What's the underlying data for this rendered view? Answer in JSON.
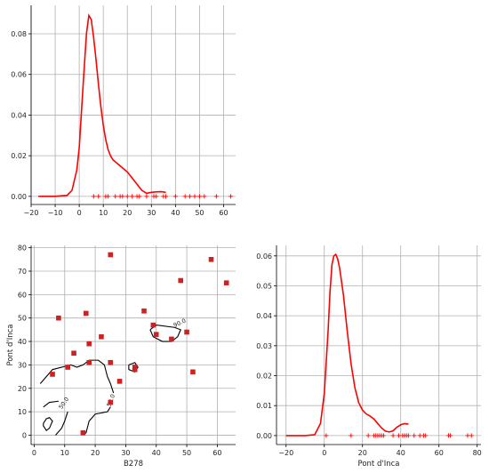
{
  "chart_data": [
    {
      "type": "line",
      "panel": "top-left",
      "description_series": "kde",
      "xlim": [
        -20,
        65
      ],
      "ylim": [
        -0.004,
        0.094
      ],
      "xticks": [
        -20,
        -10,
        0,
        10,
        20,
        30,
        40,
        50,
        60
      ],
      "yticks": [
        0.0,
        0.02,
        0.04,
        0.06,
        0.08
      ],
      "ytick_labels": [
        "0.00",
        "0.02",
        "0.04",
        "0.06",
        "0.08"
      ],
      "xlabel": "",
      "ylabel": "",
      "grid": true,
      "color": "#ff0000",
      "kde_x": [
        -17,
        -10,
        -5,
        -3,
        -1,
        0,
        1,
        2,
        3,
        4,
        5,
        6,
        7,
        8,
        9,
        10,
        11,
        12,
        13,
        14,
        16,
        18,
        20,
        22,
        24,
        26,
        28,
        30,
        32,
        34,
        36
      ],
      "kde_y": [
        0.0,
        0.0,
        0.0005,
        0.003,
        0.013,
        0.024,
        0.043,
        0.062,
        0.08,
        0.089,
        0.087,
        0.078,
        0.067,
        0.055,
        0.044,
        0.035,
        0.028,
        0.023,
        0.02,
        0.018,
        0.016,
        0.014,
        0.012,
        0.009,
        0.006,
        0.003,
        0.0015,
        0.002,
        0.0022,
        0.0023,
        0.002
      ],
      "rug_x": [
        6,
        8,
        11,
        12,
        15,
        17,
        18,
        20,
        22,
        24,
        25,
        28,
        31,
        32,
        35,
        36,
        40,
        44,
        46,
        48,
        50,
        52,
        57,
        63
      ],
      "rug_y": 0.0
    },
    {
      "type": "scatter",
      "panel": "bottom-left",
      "xlabel": "B278",
      "ylabel": "Pont d'Inca",
      "xlim": [
        -1,
        66
      ],
      "ylim": [
        -4,
        81
      ],
      "xticks": [
        0,
        10,
        20,
        30,
        40,
        50,
        60
      ],
      "yticks": [
        0,
        10,
        20,
        30,
        40,
        50,
        60,
        70,
        80
      ],
      "grid": true,
      "marker_color": "#cc2222",
      "points": [
        {
          "x": 25,
          "y": 77
        },
        {
          "x": 58,
          "y": 75
        },
        {
          "x": 48,
          "y": 66
        },
        {
          "x": 63,
          "y": 65
        },
        {
          "x": 36,
          "y": 53
        },
        {
          "x": 17,
          "y": 52
        },
        {
          "x": 8,
          "y": 50
        },
        {
          "x": 39,
          "y": 47
        },
        {
          "x": 50,
          "y": 44
        },
        {
          "x": 22,
          "y": 42
        },
        {
          "x": 40,
          "y": 43
        },
        {
          "x": 45,
          "y": 41
        },
        {
          "x": 18,
          "y": 39
        },
        {
          "x": 13,
          "y": 35
        },
        {
          "x": 18,
          "y": 31
        },
        {
          "x": 25,
          "y": 31
        },
        {
          "x": 11,
          "y": 29
        },
        {
          "x": 33,
          "y": 29
        },
        {
          "x": 33,
          "y": 28
        },
        {
          "x": 52,
          "y": 27
        },
        {
          "x": 6,
          "y": 26
        },
        {
          "x": 28,
          "y": 23
        },
        {
          "x": 25,
          "y": 14
        },
        {
          "x": 16,
          "y": 1
        }
      ],
      "contour_labels": [
        "90.0",
        "50.0",
        "50.0",
        "50.0"
      ],
      "contours": [
        [
          [
            2,
            22
          ],
          [
            6,
            28
          ],
          [
            12,
            30
          ],
          [
            14,
            29
          ],
          [
            16,
            30
          ],
          [
            18,
            32
          ],
          [
            21,
            32
          ],
          [
            23,
            30
          ],
          [
            24,
            25
          ],
          [
            25,
            22
          ],
          [
            26,
            18
          ]
        ],
        [
          [
            3,
            12
          ],
          [
            5,
            14
          ],
          [
            8,
            14.5
          ]
        ],
        [
          [
            3,
            5
          ],
          [
            4,
            7
          ],
          [
            5,
            7.5
          ],
          [
            6,
            6
          ],
          [
            5,
            3
          ],
          [
            4,
            2
          ],
          [
            3,
            4
          ],
          [
            3,
            5
          ]
        ],
        [
          [
            7,
            0
          ],
          [
            9,
            3
          ],
          [
            10,
            6
          ],
          [
            11,
            10
          ]
        ],
        [
          [
            16,
            0
          ],
          [
            17,
            1
          ],
          [
            18,
            6
          ],
          [
            20,
            9
          ],
          [
            24,
            10
          ],
          [
            25,
            12
          ]
        ],
        [
          [
            31,
            30
          ],
          [
            33,
            31
          ],
          [
            34,
            29
          ],
          [
            33,
            27
          ],
          [
            31,
            28
          ],
          [
            31,
            30
          ]
        ],
        [
          [
            38,
            45
          ],
          [
            39,
            42
          ],
          [
            42,
            40
          ],
          [
            45,
            40
          ],
          [
            47,
            42
          ],
          [
            48,
            45
          ],
          [
            46,
            46
          ],
          [
            40,
            47
          ],
          [
            38,
            45
          ]
        ]
      ]
    },
    {
      "type": "line",
      "panel": "bottom-right",
      "xlabel": "Pont d'Inca",
      "ylabel": "",
      "xlim": [
        -25,
        82
      ],
      "ylim": [
        -0.003,
        0.0635
      ],
      "xticks": [
        -20,
        0,
        20,
        40,
        60,
        80
      ],
      "yticks": [
        0.0,
        0.01,
        0.02,
        0.03,
        0.04,
        0.05,
        0.06
      ],
      "ytick_labels": [
        "0.00",
        "0.01",
        "0.02",
        "0.03",
        "0.04",
        "0.05",
        "0.06"
      ],
      "grid": true,
      "color": "#ff0000",
      "kde_x": [
        -20,
        -10,
        -5,
        -2,
        0,
        2,
        3,
        4,
        5,
        6,
        7,
        8,
        10,
        12,
        14,
        16,
        18,
        20,
        22,
        24,
        26,
        28,
        30,
        32,
        34,
        36,
        38,
        40,
        42,
        44
      ],
      "kde_y": [
        0.0,
        0.0,
        0.0003,
        0.004,
        0.014,
        0.035,
        0.048,
        0.057,
        0.06,
        0.0605,
        0.059,
        0.056,
        0.047,
        0.035,
        0.024,
        0.016,
        0.011,
        0.0085,
        0.0072,
        0.0065,
        0.0055,
        0.004,
        0.0025,
        0.0015,
        0.0012,
        0.0016,
        0.0028,
        0.0036,
        0.004,
        0.0038
      ],
      "rug_x": [
        1,
        14,
        23,
        26,
        27,
        28,
        29,
        30,
        31,
        36,
        39,
        41,
        42,
        43,
        44,
        47,
        50,
        52,
        53,
        65,
        66,
        75,
        77
      ],
      "rug_y": 0.0
    }
  ]
}
